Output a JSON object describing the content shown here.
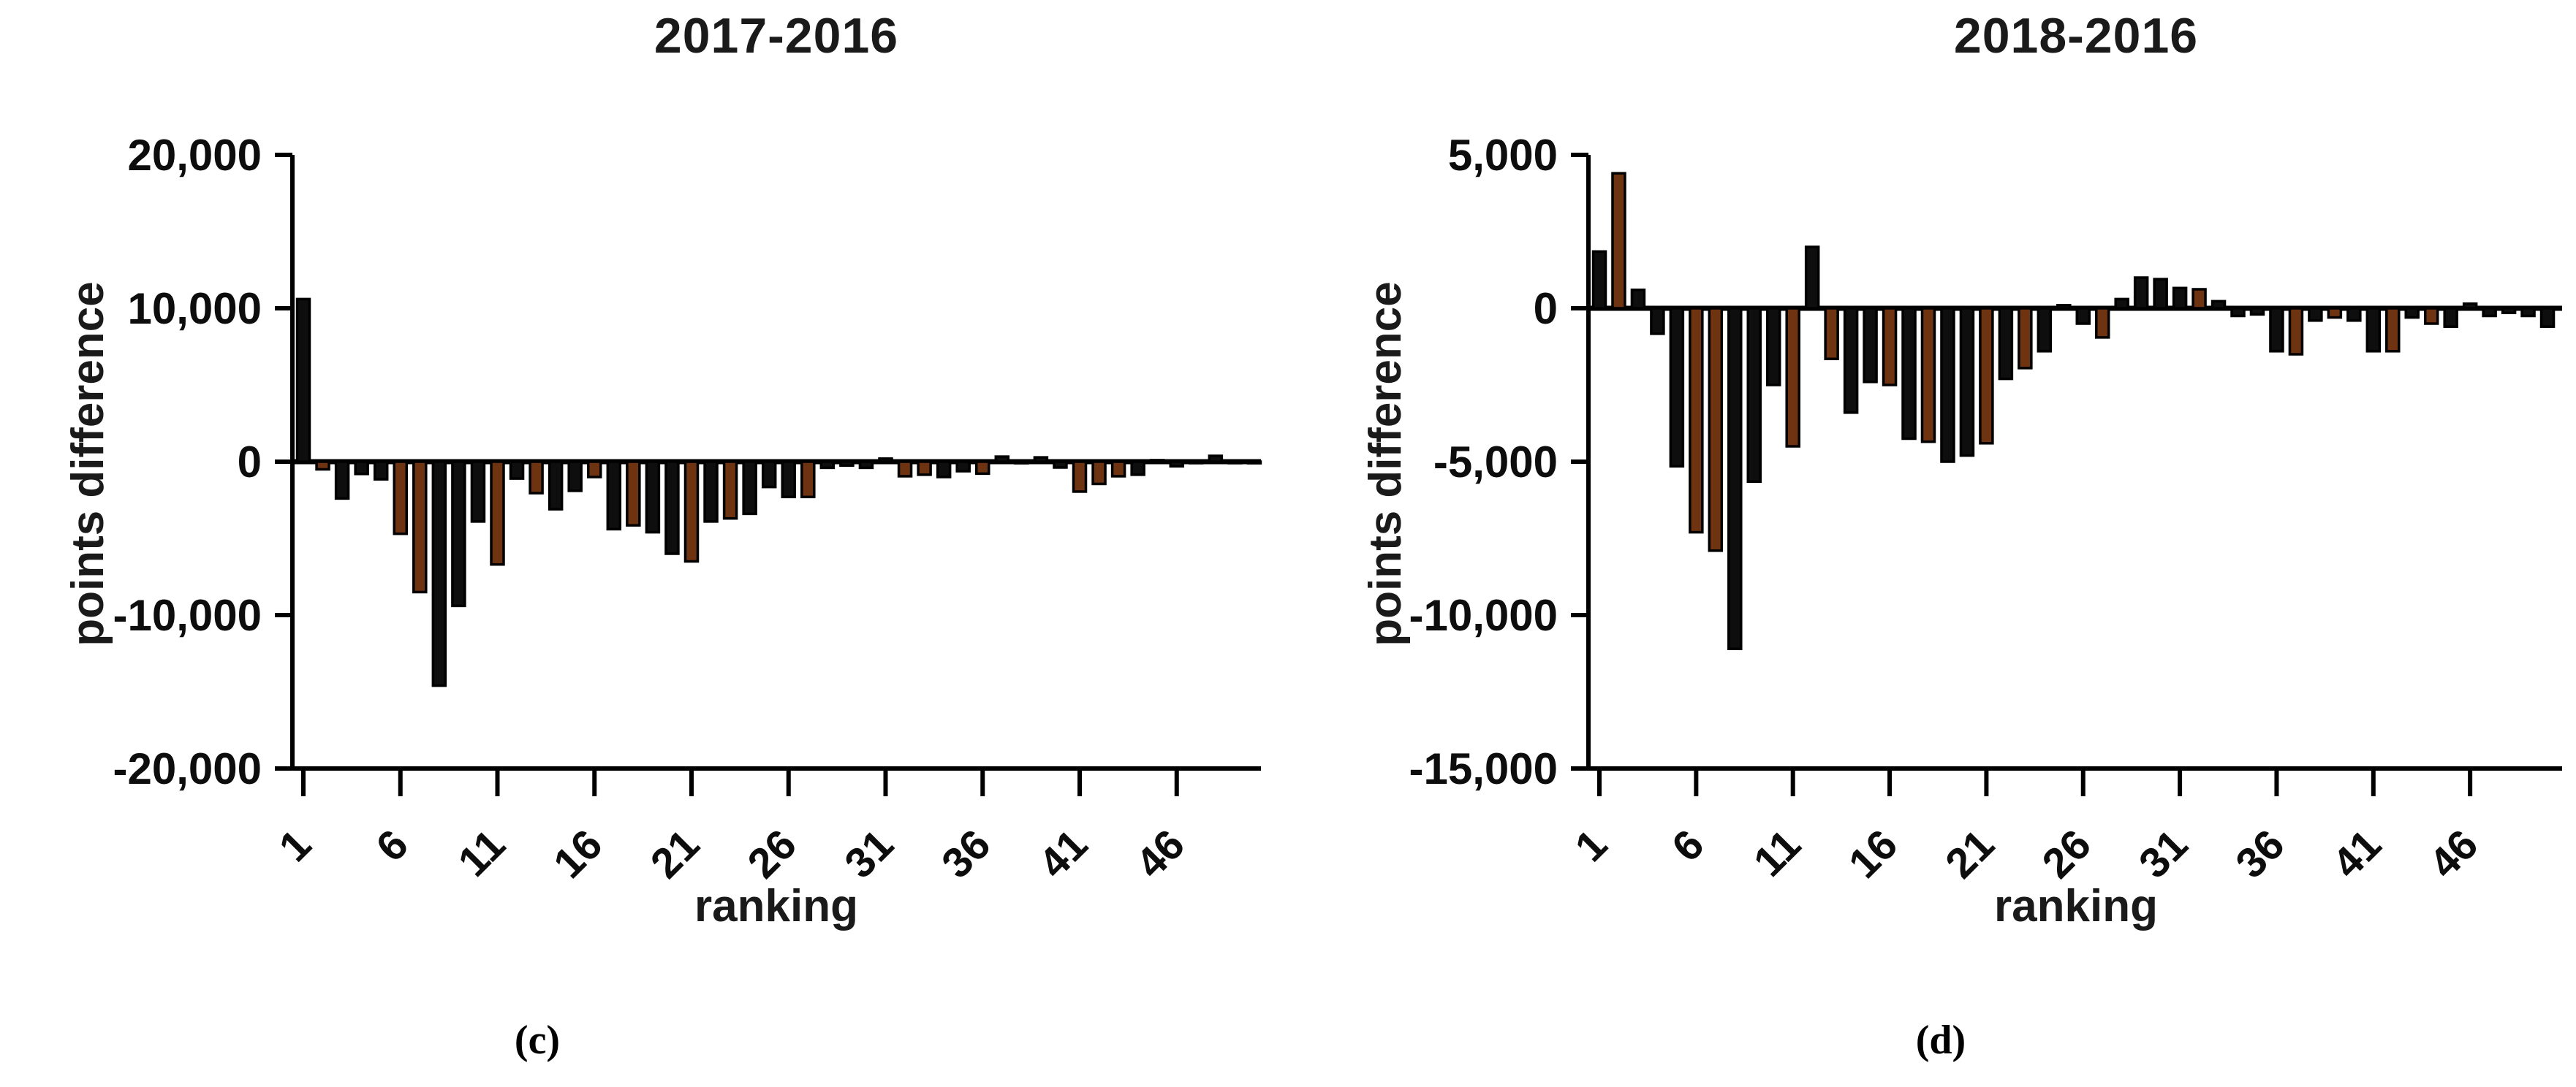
{
  "figure": {
    "panels": [
      {
        "panel_label": "(c)",
        "title": "2017-2016",
        "ylabel": "points difference",
        "xlabel": "ranking"
      },
      {
        "panel_label": "(d)",
        "title": "2018-2016",
        "ylabel": "points difference",
        "xlabel": "ranking"
      }
    ]
  },
  "chart_data": [
    {
      "type": "bar",
      "title": "2017-2016",
      "xlabel": "ranking",
      "ylabel": "points difference",
      "ylim": [
        -20000,
        20000
      ],
      "yticks": [
        20000,
        10000,
        0,
        -10000,
        -20000
      ],
      "ytick_labels": [
        "20,000",
        "10,000",
        "0",
        "-10,000",
        "-20,000"
      ],
      "xticks": [
        1,
        6,
        11,
        16,
        21,
        26,
        31,
        36,
        41,
        46
      ],
      "xtick_labels": [
        "1",
        "6",
        "11",
        "16",
        "21",
        "26",
        "31",
        "36",
        "41",
        "46"
      ],
      "grid": false,
      "legend": false,
      "x": [
        1,
        2,
        3,
        4,
        5,
        6,
        7,
        8,
        9,
        10,
        11,
        12,
        13,
        14,
        15,
        16,
        17,
        18,
        19,
        20,
        21,
        22,
        23,
        24,
        25,
        26,
        27,
        28,
        29,
        30,
        31,
        32,
        33,
        34,
        35,
        36,
        37,
        38,
        39,
        40,
        41,
        42,
        43,
        44,
        45,
        46,
        47,
        48,
        49,
        50
      ],
      "values": [
        10600,
        -500,
        -2400,
        -800,
        -1150,
        -4700,
        -8500,
        -14600,
        -9400,
        -3900,
        -6700,
        -1100,
        -2050,
        -3100,
        -1900,
        -1000,
        -4400,
        -4150,
        -4600,
        -6000,
        -6500,
        -3900,
        -3700,
        -3400,
        -1650,
        -2300,
        -2300,
        -400,
        -250,
        -400,
        200,
        -950,
        -850,
        -1000,
        -620,
        -780,
        330,
        -100,
        280,
        -380,
        -1950,
        -1450,
        -950,
        -850,
        100,
        -300,
        -50,
        380,
        -50,
        -100
      ],
      "highlighted_ranks": [
        2,
        6,
        7,
        11,
        13,
        16,
        18,
        21,
        23,
        27,
        32,
        33,
        36,
        41,
        42,
        43
      ],
      "bar_color": "#0e0e0e",
      "highlight_color": "#6e3310",
      "axis_color": "#000000"
    },
    {
      "type": "bar",
      "title": "2018-2016",
      "xlabel": "ranking",
      "ylabel": "points difference",
      "ylim": [
        -15000,
        5000
      ],
      "yticks": [
        5000,
        0,
        -5000,
        -10000,
        -15000
      ],
      "ytick_labels": [
        "5,000",
        "0",
        "-5,000",
        "-10,000",
        "-15,000"
      ],
      "xticks": [
        1,
        6,
        11,
        16,
        21,
        26,
        31,
        36,
        41,
        46
      ],
      "xtick_labels": [
        "1",
        "6",
        "11",
        "16",
        "21",
        "26",
        "31",
        "36",
        "41",
        "46"
      ],
      "grid": false,
      "legend": false,
      "x": [
        1,
        2,
        3,
        4,
        5,
        6,
        7,
        8,
        9,
        10,
        11,
        12,
        13,
        14,
        15,
        16,
        17,
        18,
        19,
        20,
        21,
        22,
        23,
        24,
        25,
        26,
        27,
        28,
        29,
        30,
        31,
        32,
        33,
        34,
        35,
        36,
        37,
        38,
        39,
        40,
        41,
        42,
        43,
        44,
        45,
        46,
        47,
        48,
        49,
        50
      ],
      "values": [
        1850,
        4400,
        600,
        -830,
        -5150,
        -7300,
        -7900,
        -11100,
        -5650,
        -2500,
        -4500,
        2000,
        -1650,
        -3400,
        -2400,
        -2500,
        -4250,
        -4350,
        -5000,
        -4800,
        -4400,
        -2300,
        -1950,
        -1400,
        100,
        -500,
        -950,
        300,
        1000,
        950,
        660,
        620,
        230,
        -250,
        -200,
        -1400,
        -1500,
        -400,
        -300,
        -400,
        -1400,
        -1400,
        -300,
        -500,
        -600,
        150,
        -250,
        -150,
        -250,
        -600
      ],
      "highlighted_ranks": [
        2,
        6,
        7,
        11,
        13,
        16,
        18,
        21,
        23,
        27,
        32,
        37,
        39,
        42,
        44
      ],
      "bar_color": "#0e0e0e",
      "highlight_color": "#6e3310",
      "axis_color": "#000000"
    }
  ]
}
